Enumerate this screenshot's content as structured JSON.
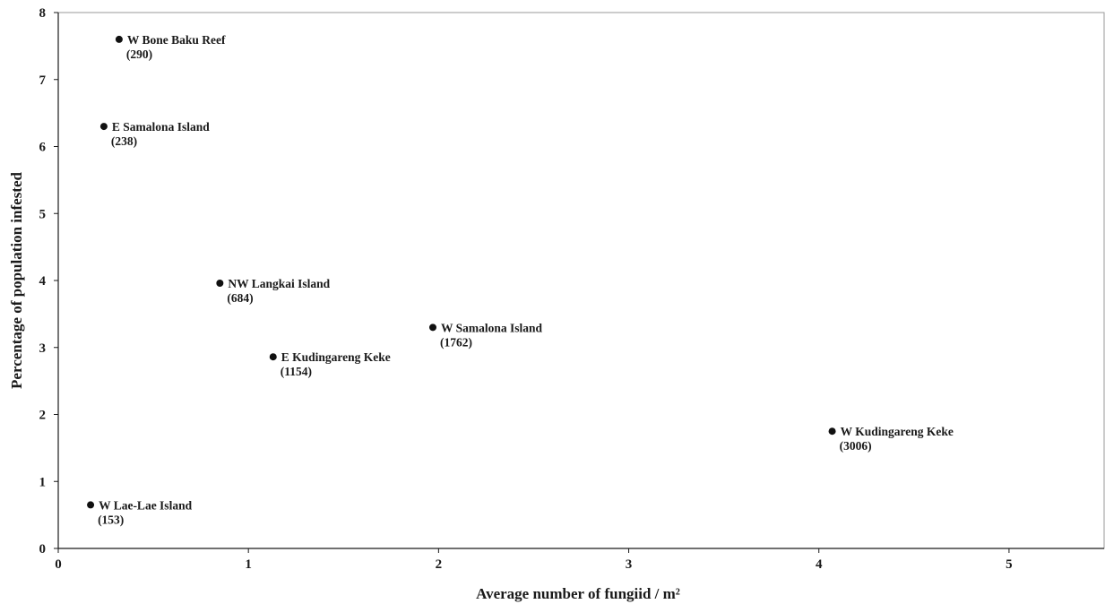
{
  "chart_data": {
    "type": "scatter",
    "title": "",
    "xlabel": "Average number of fungiid / m²",
    "ylabel": "Percentage of population infested",
    "xlim": [
      0,
      5.5
    ],
    "ylim": [
      0,
      8
    ],
    "x_ticks": [
      "0",
      "1",
      "2",
      "3",
      "4",
      "5"
    ],
    "y_ticks": [
      "0",
      "1",
      "2",
      "3",
      "4",
      "5",
      "6",
      "7",
      "8"
    ],
    "grid": false,
    "points": [
      {
        "x": 0.32,
        "y": 7.6,
        "label": "W Bone Baku Reef",
        "n": "(290)"
      },
      {
        "x": 0.24,
        "y": 6.3,
        "label": "E Samalona Island",
        "n": "(238)"
      },
      {
        "x": 0.85,
        "y": 3.96,
        "label": "NW Langkai Island",
        "n": "(684)"
      },
      {
        "x": 1.97,
        "y": 3.3,
        "label": "W Samalona Island",
        "n": "(1762)"
      },
      {
        "x": 1.13,
        "y": 2.86,
        "label": "E Kudingareng Keke",
        "n": "(1154)"
      },
      {
        "x": 4.07,
        "y": 1.75,
        "label": "W Kudingareng Keke",
        "n": "(3006)"
      },
      {
        "x": 0.17,
        "y": 0.65,
        "label": "W Lae-Lae Island",
        "n": "(153)"
      }
    ]
  }
}
